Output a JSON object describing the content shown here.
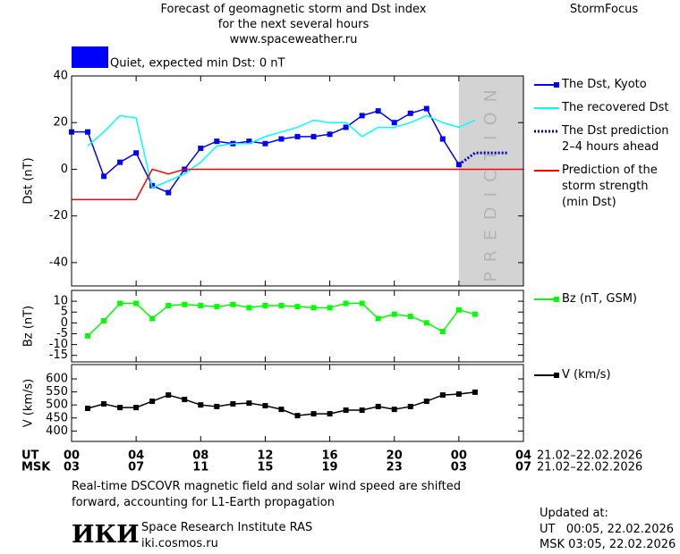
{
  "header": {
    "title": "Forecast of geomagnetic storm and Dst index\nfor the next several hours\nwww.spaceweather.ru",
    "brand": "StormFocus"
  },
  "status": {
    "label": "Quiet, expected min Dst: 0 nT",
    "color": "#0000ff"
  },
  "x_axis": {
    "xlim": [
      0,
      28
    ],
    "ut_label": "UT",
    "msk_label": "MSK",
    "xticks": [
      {
        "value": 0,
        "label": "00"
      },
      {
        "value": 4,
        "label": "04"
      },
      {
        "value": 8,
        "label": "08"
      },
      {
        "value": 12,
        "label": "12"
      },
      {
        "value": 16,
        "label": "16"
      },
      {
        "value": 20,
        "label": "20"
      },
      {
        "value": 24,
        "label": "00"
      },
      {
        "value": 28,
        "label": "04"
      }
    ],
    "x2ticks": [
      {
        "value": 0,
        "label": "03"
      },
      {
        "value": 4,
        "label": "07"
      },
      {
        "value": 8,
        "label": "11"
      },
      {
        "value": 12,
        "label": "15"
      },
      {
        "value": 16,
        "label": "19"
      },
      {
        "value": 20,
        "label": "23"
      },
      {
        "value": 24,
        "label": "03"
      },
      {
        "value": 28,
        "label": "07"
      }
    ],
    "ut_dates": "21.02–22.02.2026",
    "msk_dates": "21.02–22.02.2026"
  },
  "chart_data": [
    {
      "type": "line",
      "ylabel": "Dst (nT)",
      "ylim": [
        -50,
        40
      ],
      "yticks": [
        -40,
        -20,
        0,
        20,
        40
      ],
      "prediction_zone": [
        24,
        28
      ],
      "annotation": "PREDICTION",
      "series": [
        {
          "name": "The Dst, Kyoto",
          "color": "#0000ff",
          "marker": "square",
          "x": [
            0,
            1,
            2,
            3,
            4,
            5,
            6,
            7,
            8,
            9,
            10,
            11,
            12,
            13,
            14,
            15,
            16,
            17,
            18,
            19,
            20,
            21,
            22,
            23,
            24
          ],
          "values": [
            16,
            16,
            -3,
            3,
            7,
            -7,
            -10,
            0,
            9,
            12,
            11,
            12,
            11,
            13,
            14,
            14,
            15,
            18,
            23,
            25,
            20,
            24,
            26,
            13,
            2
          ]
        },
        {
          "name": "The recovered Dst",
          "color": "#00ffff",
          "x": [
            1,
            2,
            3,
            4,
            5,
            6,
            7,
            8,
            9,
            10,
            11,
            12,
            13,
            14,
            15,
            16,
            17,
            18,
            19,
            20,
            21,
            22,
            23,
            24,
            25
          ],
          "values": [
            10,
            16,
            23,
            22,
            -8,
            -5,
            -2,
            3,
            10,
            11,
            11,
            14,
            16,
            18,
            21,
            20,
            20,
            14,
            18,
            18,
            20,
            23,
            20,
            18,
            21
          ]
        },
        {
          "name": "The Dst prediction\n2–4 hours ahead",
          "color": "#0000cc",
          "dash": "dotted",
          "x": [
            24,
            25,
            27
          ],
          "values": [
            2,
            7,
            7
          ]
        },
        {
          "name": "Prediction of the\nstorm strength\n(min Dst)",
          "color": "#ff0000",
          "x": [
            0,
            4,
            5,
            6,
            7,
            28
          ],
          "values": [
            -13,
            -13,
            0,
            -2,
            0,
            0
          ]
        }
      ]
    },
    {
      "type": "line",
      "ylabel": "Bz (nT)",
      "ylim": [
        -18,
        15
      ],
      "yticks": [
        -15,
        -10,
        -5,
        0,
        5,
        10
      ],
      "series": [
        {
          "name": "Bz (nT, GSM)",
          "color": "#00ff00",
          "marker": "square",
          "x": [
            1,
            2,
            3,
            4,
            5,
            6,
            7,
            8,
            9,
            10,
            11,
            12,
            13,
            14,
            15,
            16,
            17,
            18,
            19,
            20,
            21,
            22,
            23,
            24,
            25
          ],
          "values": [
            -6,
            1,
            9,
            9,
            2,
            8,
            8.5,
            8,
            7.5,
            8.5,
            7,
            8,
            8,
            7.5,
            7,
            7,
            9,
            9,
            2,
            4,
            3,
            0,
            -4,
            6,
            4
          ]
        }
      ]
    },
    {
      "type": "line",
      "ylabel": "V (km/s)",
      "ylim": [
        360,
        655
      ],
      "yticks": [
        400,
        450,
        500,
        550,
        600
      ],
      "series": [
        {
          "name": "V (km/s)",
          "color": "#000000",
          "marker": "square",
          "x": [
            1,
            2,
            3,
            4,
            5,
            6,
            7,
            8,
            9,
            10,
            11,
            12,
            13,
            14,
            15,
            16,
            17,
            18,
            19,
            20,
            21,
            22,
            23,
            24,
            25
          ],
          "values": [
            487,
            504,
            490,
            490,
            514,
            538,
            521,
            500,
            494,
            504,
            507,
            497,
            483,
            459,
            466,
            466,
            480,
            480,
            494,
            483,
            494,
            514,
            538,
            542,
            549
          ]
        }
      ]
    }
  ],
  "footer": {
    "note": "Real-time DSCOVR magnetic field and solar wind speed are shifted\nforward, accounting for L1-Earth propagation",
    "logo": "ИКИ",
    "institute": "Space Research Institute RAS",
    "url": "iki.cosmos.ru",
    "updated": "Updated at:",
    "updated_ut": "UT   00:05, 22.02.2026",
    "updated_msk": "MSK 03:05, 22.02.2026"
  }
}
